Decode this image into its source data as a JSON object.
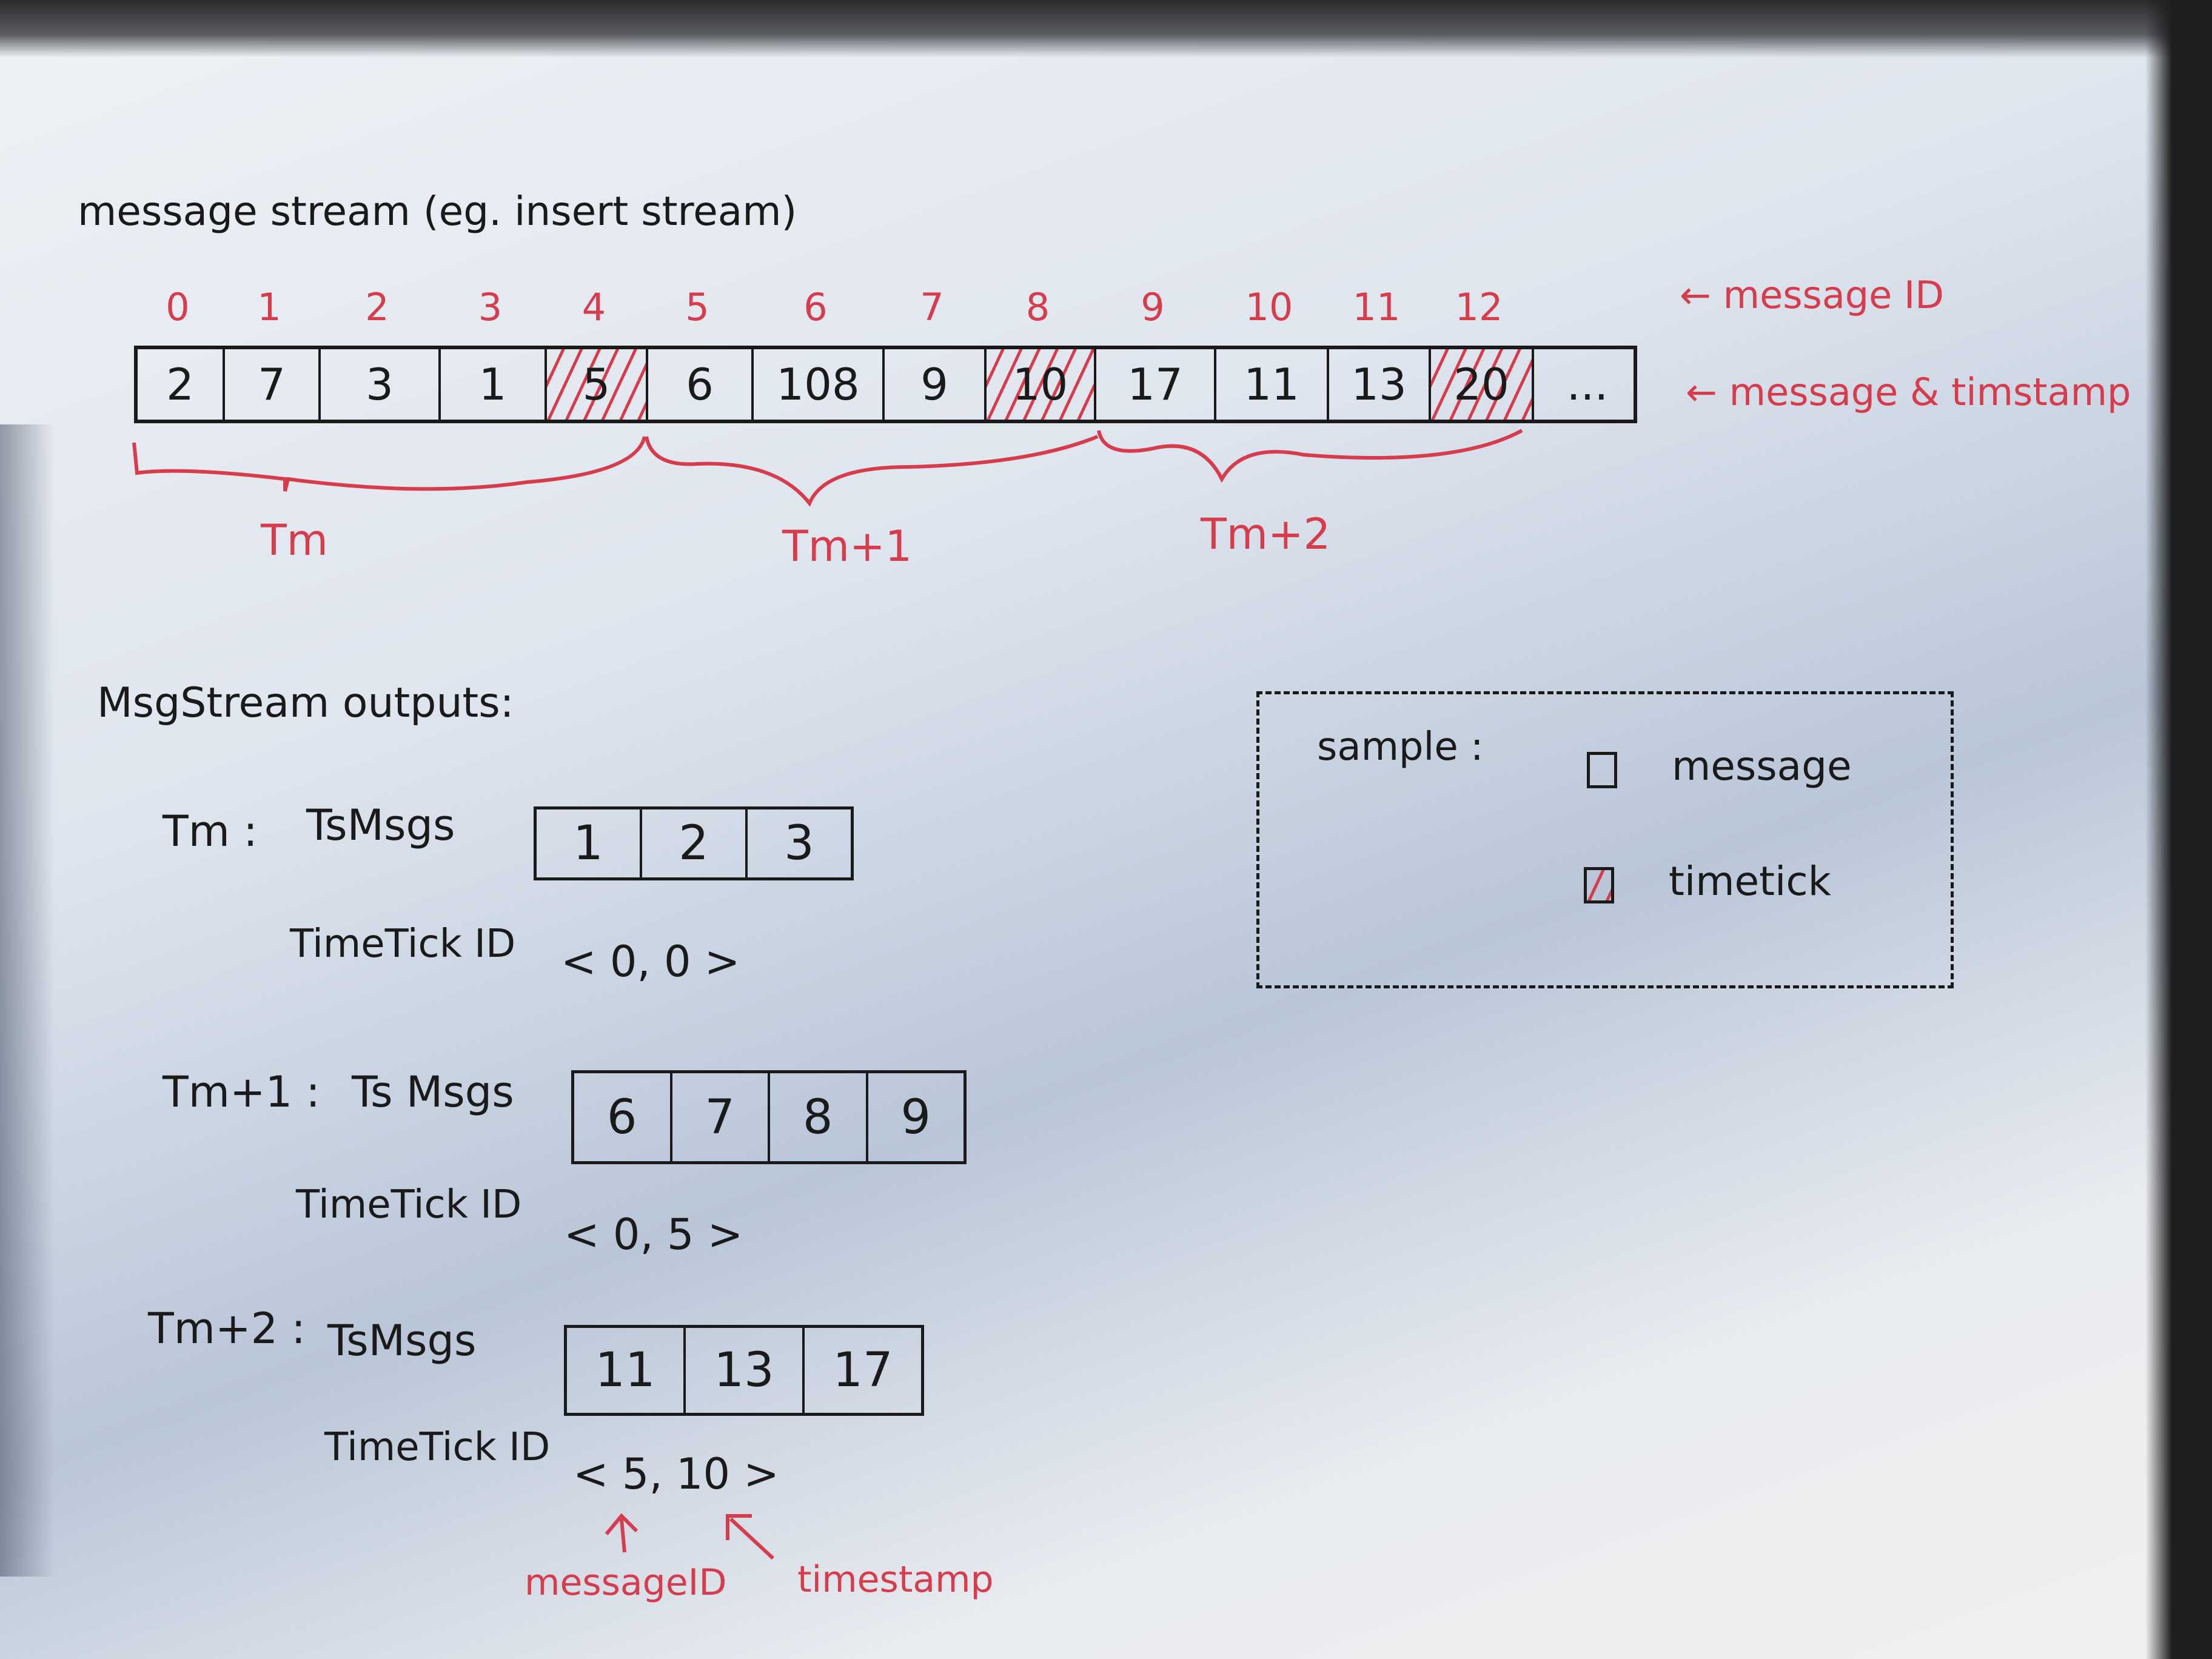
{
  "title": "message stream (eg. insert stream)",
  "stream": {
    "message_ids": [
      "0",
      "1",
      "2",
      "3",
      "4",
      "5",
      "6",
      "7",
      "8",
      "9",
      "10",
      "11",
      "12"
    ],
    "values": [
      "2",
      "7",
      "3",
      "1",
      "5",
      "6",
      "108",
      "9",
      "10",
      "17",
      "11",
      "13",
      "20",
      "..."
    ],
    "timetick_cells": [
      4,
      8,
      12
    ],
    "label_message_id": "message ID",
    "label_message_timestamp": "message & timstamp",
    "groups": [
      "Tm",
      "Tm+1",
      "Tm+2"
    ]
  },
  "outputs": {
    "heading": "MsgStream outputs:",
    "items": [
      {
        "label": "Tm :",
        "tsmsgs_label": "TsMsgs",
        "tsmsgs": [
          "1",
          "2",
          "3"
        ],
        "timetick_label": "TimeTick ID",
        "timetick": "< 0, 0 >"
      },
      {
        "label": "Tm+1 :",
        "tsmsgs_label": "Ts Msgs",
        "tsmsgs": [
          "6",
          "7",
          "8",
          "9"
        ],
        "timetick_label": "TimeTick ID",
        "timetick": "< 0, 5 >"
      },
      {
        "label": "Tm+2 :",
        "tsmsgs_label": "TsMsgs",
        "tsmsgs": [
          "11",
          "13",
          "17"
        ],
        "timetick_label": "TimeTick ID",
        "timetick": "< 5, 10 >"
      }
    ],
    "annotation_message_id": "messageID",
    "annotation_timestamp": "timestamp"
  },
  "legend": {
    "title": "sample :",
    "message": "message",
    "timetick": "timetick"
  },
  "colors": {
    "ink": "#1a1a1a",
    "red_pen": "#d63c4c"
  }
}
